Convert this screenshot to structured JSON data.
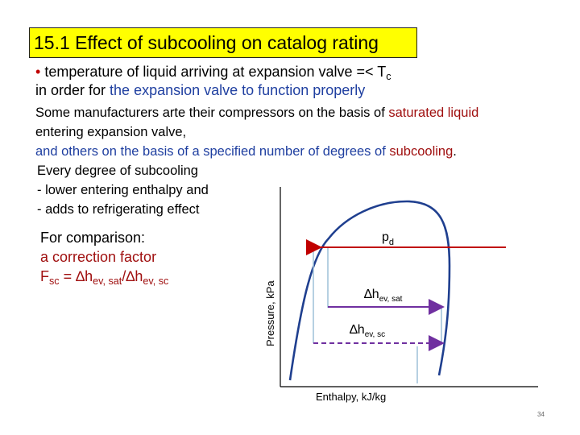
{
  "title": "15.1 Effect of subcooling on catalog rating",
  "bullet": {
    "marker": "•",
    "part1": " temperature of liquid arriving at expansion valve =< T",
    "sub": "c",
    "line2_plain": "in order for ",
    "line2_blue": "the expansion valve to function properly"
  },
  "para": {
    "line1_plain": "Some manufacturers arte their compressors on the basis of ",
    "line1_red": "saturated liquid",
    "line2": "entering expansion valve,",
    "line3_blue": "and others on the basis of a specified number of degrees of ",
    "line3_red": "subcooling",
    "line3_end": "."
  },
  "subcooling_notes": [
    "Every degree of subcooling",
    "- lower entering enthalpy and",
    "- adds to refrigerating effect"
  ],
  "comparison": {
    "line1": "For comparison:",
    "line2": "a correction factor",
    "F": "F",
    "F_sub": "sc",
    "eq": " = ∆h",
    "num_sub": "ev, sat",
    "slash": "/∆h",
    "den_sub": "ev, sc"
  },
  "diagram": {
    "ylabel": "Pressure, kPa",
    "xlabel": "Enthalpy, kJ/kg",
    "pd_main": "p",
    "pd_sub": "d",
    "dh_sat_main": "∆h",
    "dh_sat_sub": "ev, sat",
    "dh_sc_main": "∆h",
    "dh_sc_sub": "ev, sc"
  },
  "page_number": "34",
  "colors": {
    "title_bg": "#ffff00",
    "red": "#c00000",
    "blue": "#1f3fa0",
    "curve": "#1f3f8f",
    "arrow_sat": "#7030a0",
    "marker": "#9ec0d8"
  }
}
